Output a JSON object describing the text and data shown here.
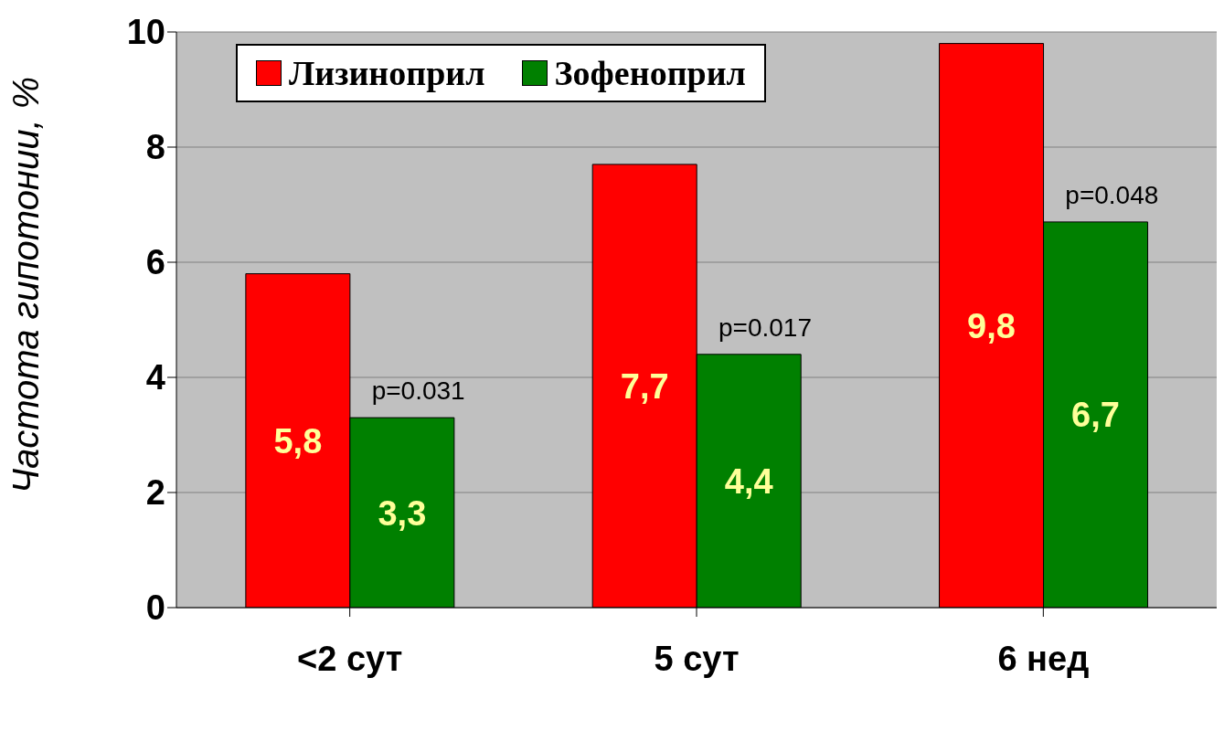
{
  "chart_data": {
    "type": "bar",
    "ylabel": "Частота гипотонии, %",
    "categories": [
      "<2 сут",
      "5 сут",
      "6 нед"
    ],
    "series": [
      {
        "name": "Лизиноприл",
        "color": "#ff0000",
        "values": [
          5.8,
          7.7,
          9.8
        ],
        "value_labels": [
          "5,8",
          "7,7",
          "9,8"
        ]
      },
      {
        "name": "Зофеноприл",
        "color": "#008000",
        "values": [
          3.3,
          4.4,
          6.7
        ],
        "value_labels": [
          "3,3",
          "4,4",
          "6,7"
        ]
      }
    ],
    "ylim": [
      0,
      10
    ],
    "yticks": [
      0,
      2,
      4,
      6,
      8,
      10
    ],
    "grid": "y",
    "legend": "top left",
    "annotations": [
      {
        "text": "p=0.031",
        "x": "<2 сут",
        "y": 3.3
      },
      {
        "text": "p=0.017",
        "x": "5 сут",
        "y": 4.4
      },
      {
        "text": "p=0.048",
        "x": "6 нед",
        "y": 6.7
      }
    ]
  }
}
